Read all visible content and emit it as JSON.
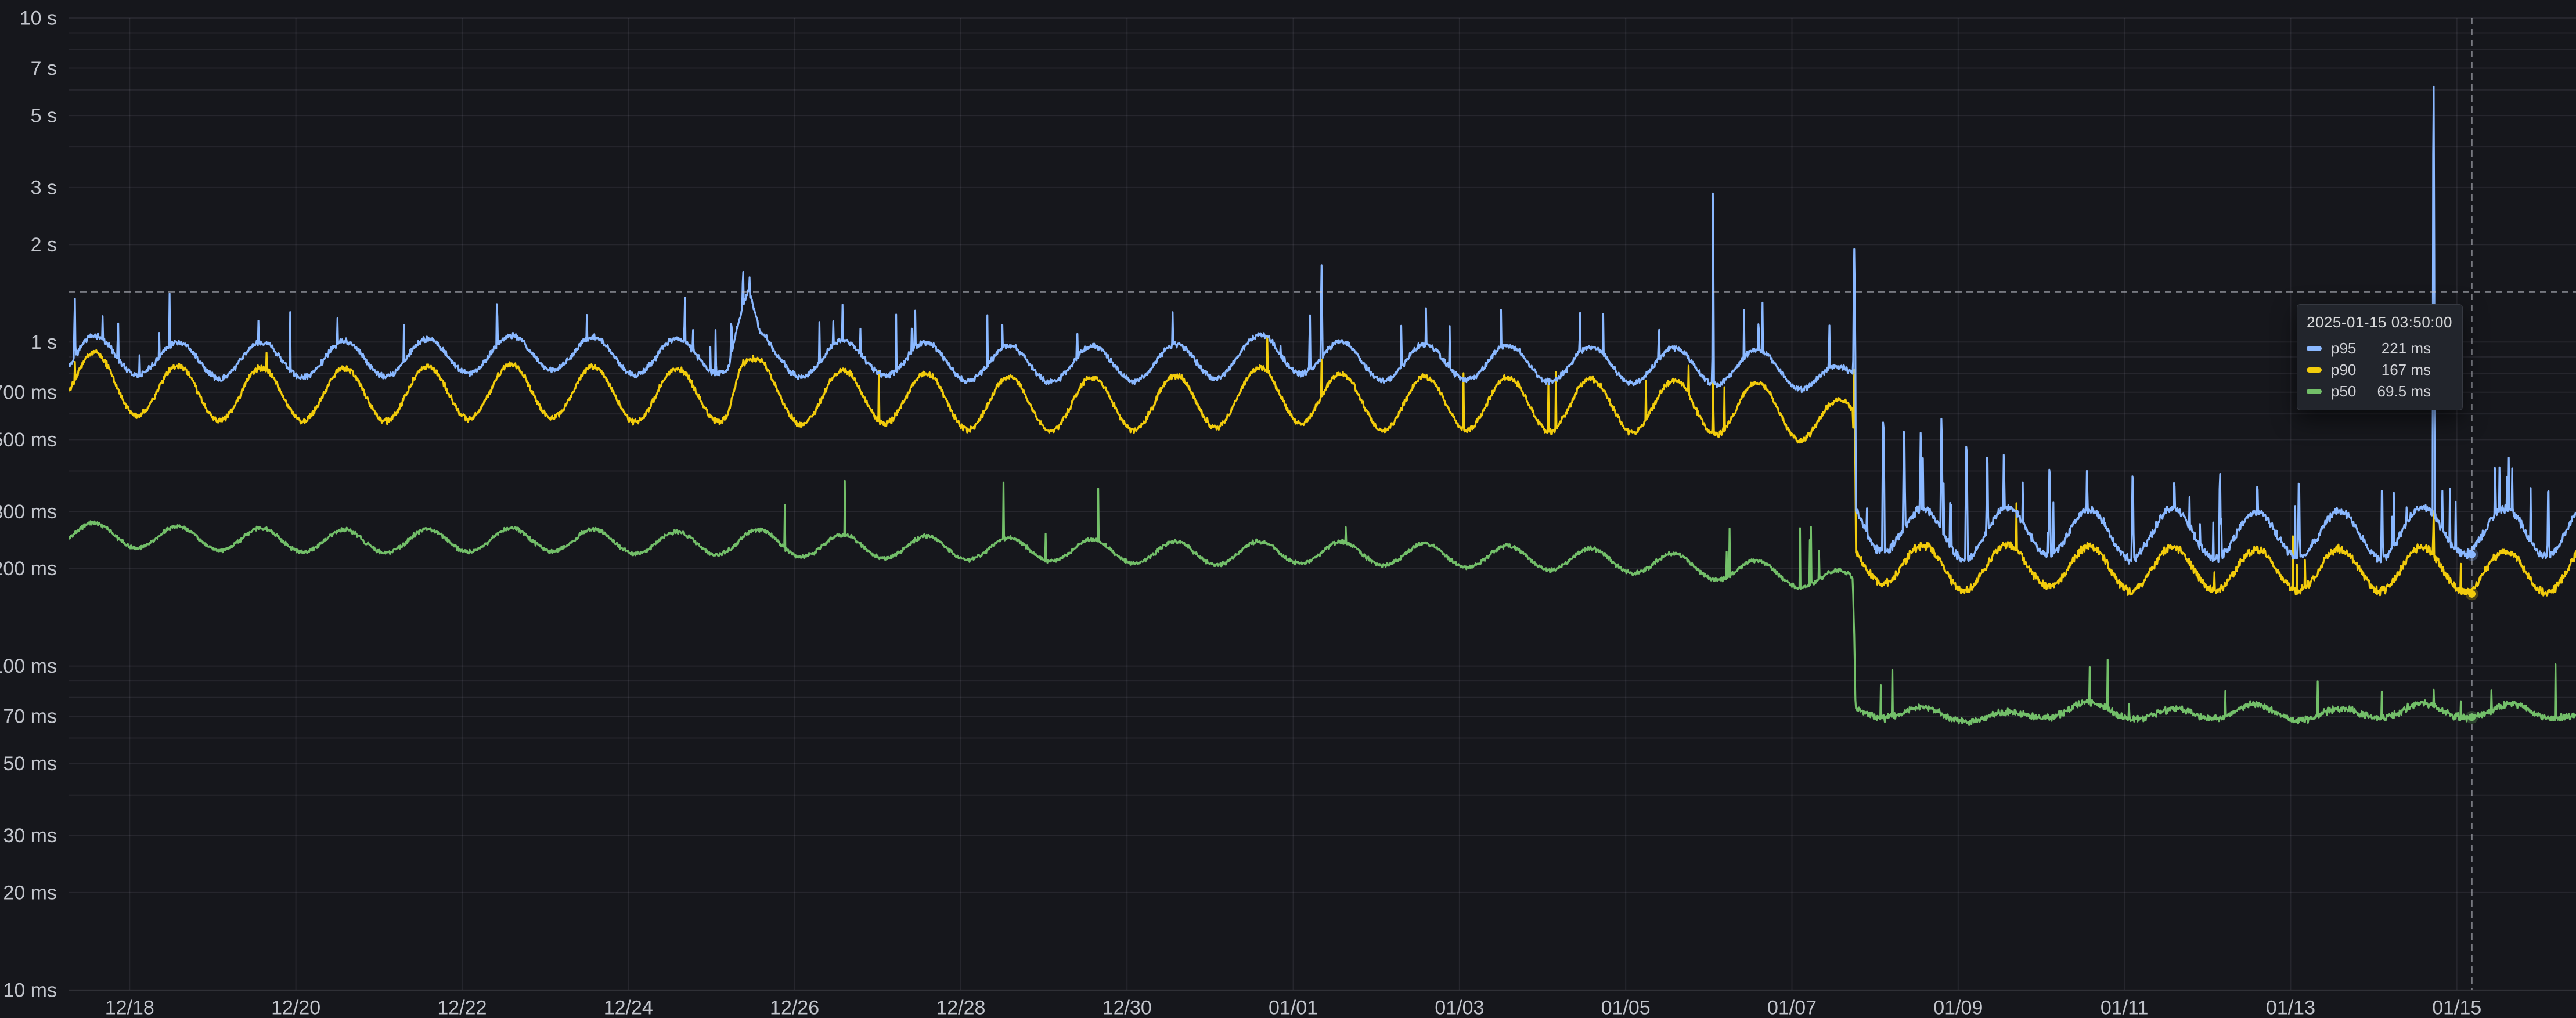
{
  "panel": {
    "kind": "grafana-timeseries-panel",
    "theme": "dark",
    "colors": {
      "background": "#16171c",
      "grid": "rgba(204,204,220,0.09)",
      "axis_line": "rgba(204,204,220,0.16)",
      "tick_text": "#c2c5cc",
      "crosshair": "rgba(200,203,212,0.55)",
      "tooltip_bg": "#22252c",
      "tooltip_border": "rgba(204,204,220,0.12)",
      "tooltip_text": "#d8d9da"
    }
  },
  "tooltip": {
    "time": "2025-01-15 03:50:00",
    "rows": [
      {
        "label": "p95",
        "value": "221 ms",
        "value_ms": 221,
        "color": "#8AB8FF"
      },
      {
        "label": "p90",
        "value": "167 ms",
        "value_ms": 167,
        "color": "#F2CC0C"
      },
      {
        "label": "p50",
        "value": "69.5 ms",
        "value_ms": 69.5,
        "color": "#73BF69"
      }
    ]
  },
  "chart_data": {
    "type": "line",
    "title": "",
    "xlabel": "",
    "ylabel": "",
    "legend_position": "none (values shown in hover tooltip)",
    "grid": true,
    "x_axis": {
      "unit": "date",
      "window_days": [
        -0.728,
        29.435
      ],
      "day0_label": "12/18",
      "ticks": [
        {
          "day": 0,
          "label": "12/18"
        },
        {
          "day": 2,
          "label": "12/20"
        },
        {
          "day": 4,
          "label": "12/22"
        },
        {
          "day": 6,
          "label": "12/24"
        },
        {
          "day": 8,
          "label": "12/26"
        },
        {
          "day": 10,
          "label": "12/28"
        },
        {
          "day": 12,
          "label": "12/30"
        },
        {
          "day": 14,
          "label": "01/01"
        },
        {
          "day": 16,
          "label": "01/03"
        },
        {
          "day": 18,
          "label": "01/05"
        },
        {
          "day": 20,
          "label": "01/07"
        },
        {
          "day": 22,
          "label": "01/09"
        },
        {
          "day": 24,
          "label": "01/11"
        },
        {
          "day": 26,
          "label": "01/13"
        },
        {
          "day": 28,
          "label": "01/15"
        }
      ]
    },
    "y_axis": {
      "scale": "log10",
      "unit": "ms",
      "ylim": [
        10,
        10000
      ],
      "major_ticks": [
        {
          "v": 10000,
          "label": "10 s"
        },
        {
          "v": 7000,
          "label": "7 s"
        },
        {
          "v": 5000,
          "label": "5 s"
        },
        {
          "v": 3000,
          "label": "3 s"
        },
        {
          "v": 2000,
          "label": "2 s"
        },
        {
          "v": 1000,
          "label": "1 s"
        },
        {
          "v": 700,
          "label": "700 ms"
        },
        {
          "v": 500,
          "label": "500 ms"
        },
        {
          "v": 300,
          "label": "300 ms"
        },
        {
          "v": 200,
          "label": "200 ms"
        },
        {
          "v": 100,
          "label": "100 ms"
        },
        {
          "v": 70,
          "label": "70 ms"
        },
        {
          "v": 50,
          "label": "50 ms"
        },
        {
          "v": 30,
          "label": "30 ms"
        },
        {
          "v": 20,
          "label": "20 ms"
        }
      ],
      "bottom_tick": {
        "v": 10,
        "label": "10 ms"
      },
      "minor_tick_values": [
        9000,
        8000,
        6000,
        4000,
        900,
        800,
        600,
        400,
        90,
        80,
        60,
        40
      ]
    },
    "crosshair": {
      "day": 28.18,
      "value_ms": 1430
    },
    "baseline_shift_day": 20.755,
    "baseline_shift_note": "step drop in all percentiles late on 01/07",
    "daily_peak_frac": 0.583,
    "sample_step_days": 0.006944,
    "series": [
      {
        "name": "p95",
        "color": "#8AB8FF",
        "seed": 11,
        "daily_amp": [
          0.14,
          0.19
        ],
        "noise": [
          0.025,
          0.035
        ],
        "spike_prob": [
          0.006,
          0.016
        ],
        "anchors": [
          [
            -0.73,
            880
          ],
          [
            -0.5,
            920
          ],
          [
            0,
            900
          ],
          [
            0.5,
            878
          ],
          [
            1,
            872
          ],
          [
            2,
            878
          ],
          [
            3,
            884
          ],
          [
            4,
            902
          ],
          [
            5,
            928
          ],
          [
            6,
            894
          ],
          [
            7.2,
            902
          ],
          [
            7.32,
            1140
          ],
          [
            7.44,
            1330
          ],
          [
            7.58,
            948
          ],
          [
            7.75,
            880
          ],
          [
            8,
            878
          ],
          [
            9,
            893
          ],
          [
            10,
            858
          ],
          [
            11,
            848
          ],
          [
            12,
            854
          ],
          [
            13,
            868
          ],
          [
            13.7,
            935
          ],
          [
            14.1,
            900
          ],
          [
            15,
            858
          ],
          [
            16,
            863
          ],
          [
            17,
            853
          ],
          [
            18,
            843
          ],
          [
            19,
            838
          ],
          [
            19.9,
            828
          ],
          [
            20.3,
            788
          ],
          [
            20.6,
            728
          ],
          [
            20.73,
            738
          ],
          [
            20.765,
            285
          ],
          [
            21,
            268
          ],
          [
            21.5,
            258
          ],
          [
            22,
            252
          ],
          [
            22.5,
            258
          ],
          [
            23,
            262
          ],
          [
            23.5,
            256
          ],
          [
            24,
            252
          ],
          [
            24.5,
            258
          ],
          [
            25,
            254
          ],
          [
            25.5,
            250
          ],
          [
            26,
            256
          ],
          [
            26.5,
            252
          ],
          [
            27,
            255
          ],
          [
            27.5,
            258
          ],
          [
            28,
            263
          ],
          [
            28.5,
            258
          ],
          [
            29,
            256
          ],
          [
            29.44,
            268
          ]
        ],
        "spikes": [
          [
            -0.66,
            1440
          ],
          [
            -0.14,
            1250
          ],
          [
            1.55,
            1180
          ],
          [
            2.5,
            1230
          ],
          [
            3.3,
            1150
          ],
          [
            4.42,
            1450
          ],
          [
            5.5,
            1250
          ],
          [
            6.68,
            1440
          ],
          [
            7.05,
            1120
          ],
          [
            7.24,
            1300
          ],
          [
            7.38,
            1830
          ],
          [
            7.46,
            1650
          ],
          [
            8.3,
            1190
          ],
          [
            9.45,
            1350
          ],
          [
            10.5,
            1150
          ],
          [
            11.4,
            1210
          ],
          [
            12.55,
            1290
          ],
          [
            13.65,
            1110
          ],
          [
            13.85,
            1080
          ],
          [
            14.2,
            1290
          ],
          [
            14.34,
            1760
          ],
          [
            15.3,
            1180
          ],
          [
            16.5,
            1260
          ],
          [
            17.45,
            1300
          ],
          [
            18.4,
            1220
          ],
          [
            19.05,
            3300
          ],
          [
            19.6,
            1280
          ],
          [
            20.45,
            1180
          ],
          [
            20.75,
            1950
          ],
          [
            21.1,
            640
          ],
          [
            21.35,
            600
          ],
          [
            21.55,
            560
          ],
          [
            21.8,
            620
          ],
          [
            22.1,
            540
          ],
          [
            22.35,
            500
          ],
          [
            22.55,
            480
          ],
          [
            23.1,
            460
          ],
          [
            23.55,
            430
          ],
          [
            24.1,
            440
          ],
          [
            24.6,
            420
          ],
          [
            25.15,
            430
          ],
          [
            25.6,
            410
          ],
          [
            26.1,
            420
          ],
          [
            27.1,
            400
          ],
          [
            27.72,
            7100
          ],
          [
            28.46,
            450
          ],
          [
            29.1,
            400
          ]
        ]
      },
      {
        "name": "p90",
        "color": "#F2CC0C",
        "seed": 22,
        "daily_amp": [
          0.21,
          0.17
        ],
        "noise": [
          0.025,
          0.035
        ],
        "spike_prob": [
          0.004,
          0.008
        ],
        "anchors": [
          [
            -0.73,
            760
          ],
          [
            -0.4,
            770
          ],
          [
            0,
            718
          ],
          [
            0.5,
            698
          ],
          [
            1,
            688
          ],
          [
            2,
            688
          ],
          [
            3,
            686
          ],
          [
            4,
            698
          ],
          [
            5,
            708
          ],
          [
            6,
            683
          ],
          [
            7.2,
            688
          ],
          [
            7.34,
            820
          ],
          [
            7.5,
            748
          ],
          [
            7.75,
            678
          ],
          [
            8,
            670
          ],
          [
            9,
            678
          ],
          [
            10,
            648
          ],
          [
            11,
            640
          ],
          [
            12,
            646
          ],
          [
            13,
            653
          ],
          [
            13.7,
            698
          ],
          [
            14.1,
            678
          ],
          [
            15,
            643
          ],
          [
            16,
            648
          ],
          [
            17,
            640
          ],
          [
            18,
            633
          ],
          [
            19,
            626
          ],
          [
            19.9,
            616
          ],
          [
            20.3,
            583
          ],
          [
            20.6,
            543
          ],
          [
            20.73,
            548
          ],
          [
            20.765,
            212
          ],
          [
            21,
            210
          ],
          [
            21.5,
            202
          ],
          [
            22,
            198
          ],
          [
            22.5,
            202
          ],
          [
            23,
            205
          ],
          [
            23.5,
            200
          ],
          [
            24,
            197
          ],
          [
            24.5,
            200
          ],
          [
            25,
            198
          ],
          [
            25.5,
            195
          ],
          [
            26,
            199
          ],
          [
            26.5,
            196
          ],
          [
            27,
            198
          ],
          [
            27.5,
            200
          ],
          [
            28,
            197
          ],
          [
            28.5,
            193
          ],
          [
            29,
            194
          ],
          [
            29.44,
            200
          ]
        ],
        "spikes": [
          [
            -0.66,
            920
          ],
          [
            7.38,
            980
          ],
          [
            14.34,
            900
          ],
          [
            19.05,
            800
          ],
          [
            20.75,
            830
          ],
          [
            27.72,
            320
          ]
        ]
      },
      {
        "name": "p50",
        "color": "#73BF69",
        "seed": 33,
        "daily_amp": [
          0.09,
          0.05
        ],
        "noise": [
          0.018,
          0.03
        ],
        "spike_prob": [
          0.002,
          0.006
        ],
        "anchors": [
          [
            -0.73,
            256
          ],
          [
            0,
            250
          ],
          [
            1,
            246
          ],
          [
            2,
            243
          ],
          [
            3,
            241
          ],
          [
            4,
            243
          ],
          [
            5,
            245
          ],
          [
            6,
            240
          ],
          [
            7,
            237
          ],
          [
            7.4,
            244
          ],
          [
            8,
            235
          ],
          [
            9,
            232
          ],
          [
            10,
            230
          ],
          [
            11,
            227
          ],
          [
            12,
            224
          ],
          [
            13,
            221
          ],
          [
            14,
            224
          ],
          [
            15,
            221
          ],
          [
            16,
            218
          ],
          [
            17,
            214
          ],
          [
            18,
            210
          ],
          [
            19,
            200
          ],
          [
            19.8,
            192
          ],
          [
            20.3,
            186
          ],
          [
            20.73,
            178
          ],
          [
            20.765,
            73
          ],
          [
            21.5,
            71
          ],
          [
            22,
            70.5
          ],
          [
            22.6,
            68.5
          ],
          [
            23,
            72
          ],
          [
            23.5,
            74
          ],
          [
            24,
            72
          ],
          [
            24.5,
            70
          ],
          [
            25,
            71.5
          ],
          [
            25.5,
            73
          ],
          [
            26,
            71
          ],
          [
            26.5,
            70
          ],
          [
            27,
            72
          ],
          [
            27.5,
            73
          ],
          [
            28,
            72.5
          ],
          [
            28.4,
            71
          ],
          [
            28.8,
            74
          ],
          [
            29.1,
            72
          ],
          [
            29.44,
            69
          ]
        ],
        "spikes": [
          [
            27.72,
            90
          ]
        ]
      }
    ]
  }
}
